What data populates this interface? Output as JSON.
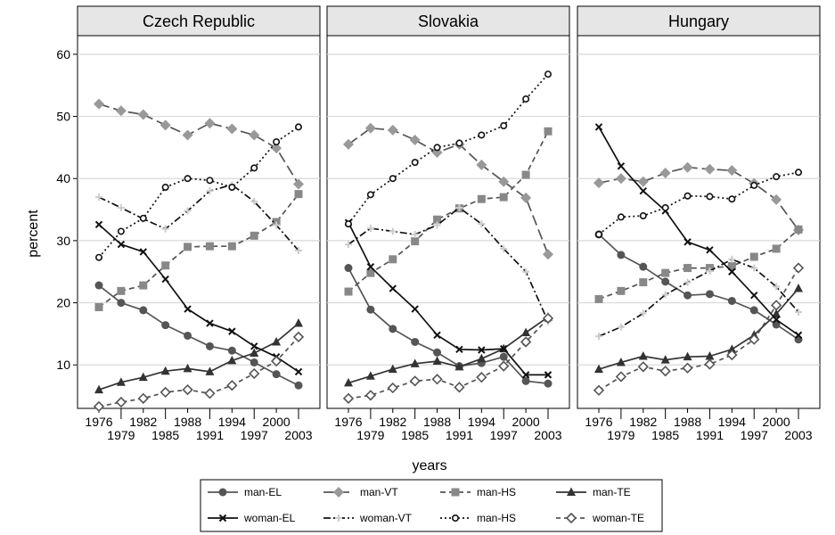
{
  "chart_data": {
    "type": "line",
    "panels": [
      {
        "title": "Czech Republic",
        "series": [
          {
            "name": "man-EL",
            "values": [
              22.8,
              20.0,
              18.8,
              16.4,
              14.7,
              13.0,
              12.3,
              10.4,
              8.5,
              6.7
            ]
          },
          {
            "name": "man-VT",
            "values": [
              52.0,
              50.9,
              50.3,
              48.6,
              47.0,
              48.9,
              48.0,
              47.0,
              44.9,
              39.1
            ]
          },
          {
            "name": "man-HS",
            "values": [
              19.3,
              21.9,
              22.8,
              26.0,
              29.0,
              29.1,
              29.1,
              30.8,
              33.0,
              37.5
            ]
          },
          {
            "name": "man-TE",
            "values": [
              6.0,
              7.2,
              8.0,
              9.0,
              9.4,
              8.9,
              10.7,
              11.9,
              13.7,
              16.7
            ]
          },
          {
            "name": "woman-EL",
            "values": [
              32.6,
              29.4,
              28.2,
              23.8,
              19.0,
              16.7,
              15.4,
              13.0,
              11.3,
              8.9
            ]
          },
          {
            "name": "woman-VT",
            "values": [
              37.0,
              35.3,
              33.5,
              31.9,
              34.8,
              38.0,
              39.0,
              36.3,
              32.5,
              28.4
            ]
          },
          {
            "name": "man-HS",
            "values": [
              27.3,
              31.5,
              33.6,
              38.6,
              40.0,
              39.7,
              38.6,
              41.7,
              45.9,
              48.3
            ]
          },
          {
            "name": "woman-TE",
            "values": [
              3.3,
              4.0,
              4.6,
              5.6,
              6.0,
              5.4,
              6.7,
              8.6,
              10.6,
              14.5
            ]
          }
        ]
      },
      {
        "title": "Slovakia",
        "series": [
          {
            "name": "man-EL",
            "values": [
              25.6,
              18.9,
              15.8,
              13.7,
              12.0,
              9.8,
              10.3,
              11.3,
              7.4,
              7.0
            ]
          },
          {
            "name": "man-VT",
            "values": [
              45.5,
              48.1,
              47.8,
              46.2,
              44.2,
              45.5,
              42.2,
              39.5,
              36.9,
              27.8
            ]
          },
          {
            "name": "man-HS",
            "values": [
              21.8,
              24.8,
              27.0,
              29.9,
              33.4,
              35.2,
              36.7,
              37.0,
              40.6,
              47.6
            ]
          },
          {
            "name": "man-TE",
            "values": [
              7.1,
              8.2,
              9.3,
              10.2,
              10.6,
              9.7,
              11.0,
              12.6,
              15.2,
              17.7
            ]
          },
          {
            "name": "woman-EL",
            "values": [
              32.9,
              25.8,
              22.3,
              19.0,
              14.8,
              12.5,
              12.4,
              12.6,
              8.4,
              8.4
            ]
          },
          {
            "name": "woman-VT",
            "values": [
              29.4,
              32.0,
              31.5,
              31.0,
              32.5,
              35.3,
              32.7,
              28.7,
              25.0,
              17.0
            ]
          },
          {
            "name": "man-HS",
            "values": [
              32.7,
              37.4,
              40.0,
              42.6,
              45.0,
              45.7,
              47.0,
              48.5,
              52.8,
              56.8
            ]
          },
          {
            "name": "woman-TE",
            "values": [
              4.6,
              5.1,
              6.3,
              7.4,
              7.7,
              6.4,
              8.0,
              9.8,
              13.7,
              17.5
            ]
          }
        ]
      },
      {
        "title": "Hungary",
        "series": [
          {
            "name": "man-EL",
            "values": [
              31.0,
              27.7,
              25.8,
              23.4,
              21.2,
              21.4,
              20.3,
              18.8,
              16.5,
              14.1
            ]
          },
          {
            "name": "man-VT",
            "values": [
              39.3,
              40.0,
              39.5,
              40.9,
              41.8,
              41.5,
              41.3,
              39.2,
              36.6,
              31.7
            ]
          },
          {
            "name": "man-HS",
            "values": [
              20.6,
              21.9,
              23.3,
              24.8,
              25.6,
              25.6,
              25.9,
              27.4,
              28.7,
              31.8
            ]
          },
          {
            "name": "man-TE",
            "values": [
              9.3,
              10.4,
              11.4,
              10.8,
              11.3,
              11.4,
              12.5,
              14.8,
              18.2,
              22.3
            ]
          },
          {
            "name": "woman-EL",
            "values": [
              48.3,
              42.0,
              38.0,
              34.8,
              29.8,
              28.5,
              25.0,
              21.2,
              17.3,
              14.8
            ]
          },
          {
            "name": "woman-VT",
            "values": [
              14.6,
              16.1,
              18.3,
              21.3,
              23.3,
              25.1,
              27.0,
              25.6,
              22.6,
              18.5
            ]
          },
          {
            "name": "man-HS",
            "values": [
              31.0,
              33.8,
              34.0,
              35.3,
              37.2,
              37.1,
              36.7,
              38.9,
              40.3,
              41.0
            ]
          },
          {
            "name": "woman-TE",
            "values": [
              5.9,
              8.1,
              9.7,
              9.0,
              9.5,
              10.1,
              11.6,
              14.1,
              19.6,
              25.6
            ]
          }
        ]
      }
    ],
    "x": [
      1976,
      1979,
      1982,
      1985,
      1988,
      1991,
      1994,
      1997,
      2000,
      2003
    ],
    "x_ticks_upper": [
      "1976",
      "1982",
      "1988",
      "1994",
      "2000"
    ],
    "x_ticks_lower": [
      "1979",
      "1985",
      "1991",
      "1997",
      "2003"
    ],
    "y_ticks": [
      "10",
      "20",
      "30",
      "40",
      "50",
      "60"
    ],
    "ylim": [
      3,
      63
    ],
    "xlabel": "years",
    "ylabel": "percent",
    "grid": true,
    "legend_position": "bottom",
    "legend": [
      "man-EL",
      "man-VT",
      "man-HS",
      "man-TE",
      "woman-EL",
      "woman-VT",
      "man-HS",
      "woman-TE"
    ],
    "styles": [
      {
        "color": "#555555",
        "dash": "",
        "marker": "circle"
      },
      {
        "color": "#555555",
        "dash": "12,5",
        "marker": "diamond"
      },
      {
        "color": "#555555",
        "dash": "6,4",
        "marker": "square"
      },
      {
        "color": "#333333",
        "dash": "",
        "marker": "triangle"
      },
      {
        "color": "#111111",
        "dash": "",
        "marker": "x"
      },
      {
        "color": "#111111",
        "dash": "8,3,2,3",
        "marker": "plus"
      },
      {
        "color": "#111111",
        "dash": "2,3",
        "marker": "open-circle"
      },
      {
        "color": "#555555",
        "dash": "5,4",
        "marker": "open-diamond"
      }
    ]
  }
}
